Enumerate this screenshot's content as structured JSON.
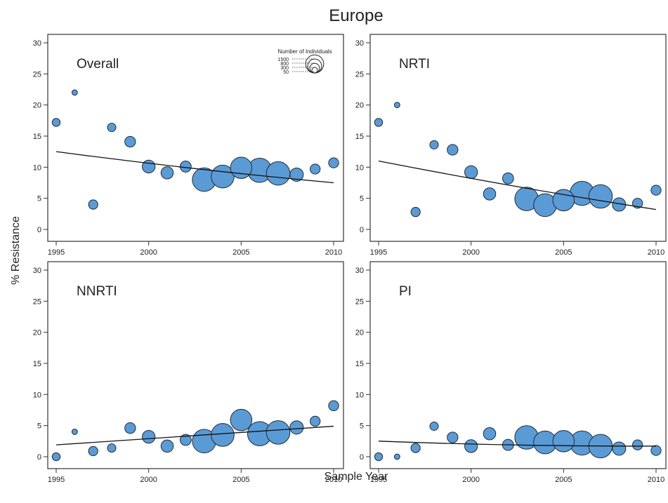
{
  "figure": {
    "title": "Europe",
    "xlabel": "Sample Year",
    "ylabel": "% Resistance"
  },
  "legend": {
    "title": "Number of Individuals",
    "entries": [
      {
        "label": "1500",
        "value": 1500
      },
      {
        "label": "800",
        "value": 800
      },
      {
        "label": "300",
        "value": 300
      },
      {
        "label": "50",
        "value": 50
      }
    ]
  },
  "colors": {
    "bubble_fill": "#5b9bd5",
    "bubble_stroke": "#1f2a36",
    "trend_line": "#111111",
    "axis": "#333333"
  },
  "chart_data": [
    {
      "type": "scatter",
      "title": "Overall",
      "xlim": [
        1995,
        2010
      ],
      "ylim": [
        0,
        30
      ],
      "xticks": [
        1995,
        2000,
        2005,
        2010
      ],
      "yticks": [
        0,
        5,
        10,
        15,
        20,
        25,
        30
      ],
      "x": [
        1995,
        1996,
        1997,
        1998,
        1999,
        2000,
        2001,
        2002,
        2003,
        2004,
        2005,
        2006,
        2007,
        2008,
        2009,
        2010
      ],
      "y": [
        17.2,
        22.0,
        4.0,
        16.4,
        14.1,
        10.1,
        9.1,
        10.1,
        8.0,
        8.5,
        9.9,
        9.5,
        9.0,
        8.8,
        9.7,
        10.7
      ],
      "n": [
        60,
        20,
        90,
        70,
        130,
        200,
        180,
        140,
        800,
        750,
        650,
        850,
        800,
        220,
        110,
        110
      ],
      "trend": {
        "x": [
          1995,
          2010
        ],
        "y": [
          12.5,
          7.5
        ]
      }
    },
    {
      "type": "scatter",
      "title": "NRTI",
      "xlim": [
        1995,
        2010
      ],
      "ylim": [
        0,
        30
      ],
      "xticks": [
        1995,
        2000,
        2005,
        2010
      ],
      "yticks": [
        0,
        5,
        10,
        15,
        20,
        25,
        30
      ],
      "x": [
        1995,
        1996,
        1997,
        1998,
        1999,
        2000,
        2001,
        2002,
        2003,
        2004,
        2005,
        2006,
        2007,
        2008,
        2009,
        2010
      ],
      "y": [
        17.2,
        20.0,
        2.8,
        13.6,
        12.8,
        9.2,
        5.7,
        8.2,
        4.9,
        3.9,
        4.7,
        5.8,
        5.3,
        4.0,
        4.2,
        6.3
      ],
      "n": [
        60,
        20,
        90,
        70,
        130,
        200,
        180,
        140,
        800,
        750,
        650,
        850,
        800,
        220,
        110,
        110
      ],
      "trend": {
        "x": [
          1995,
          2010
        ],
        "y": [
          11.0,
          3.2
        ]
      }
    },
    {
      "type": "scatter",
      "title": "NNRTI",
      "xlim": [
        1995,
        2010
      ],
      "ylim": [
        0,
        30
      ],
      "xticks": [
        1995,
        2000,
        2005,
        2010
      ],
      "yticks": [
        0,
        5,
        10,
        15,
        20,
        25,
        30
      ],
      "x": [
        1995,
        1996,
        1997,
        1998,
        1999,
        2000,
        2001,
        2002,
        2003,
        2004,
        2005,
        2006,
        2007,
        2008,
        2009,
        2010
      ],
      "y": [
        0.0,
        4.0,
        0.9,
        1.4,
        4.6,
        3.2,
        1.7,
        2.7,
        2.5,
        3.5,
        5.9,
        3.7,
        3.9,
        4.7,
        5.7,
        8.2
      ],
      "n": [
        60,
        20,
        90,
        70,
        130,
        200,
        180,
        140,
        800,
        750,
        650,
        850,
        800,
        220,
        110,
        110
      ],
      "trend": {
        "x": [
          1995,
          2010
        ],
        "y": [
          1.9,
          4.9
        ]
      }
    },
    {
      "type": "scatter",
      "title": "PI",
      "xlim": [
        1995,
        2010
      ],
      "ylim": [
        0,
        30
      ],
      "xticks": [
        1995,
        2000,
        2005,
        2010
      ],
      "yticks": [
        0,
        5,
        10,
        15,
        20,
        25,
        30
      ],
      "x": [
        1995,
        1996,
        1997,
        1998,
        1999,
        2000,
        2001,
        2002,
        2003,
        2004,
        2005,
        2006,
        2007,
        2008,
        2009,
        2010
      ],
      "y": [
        0.0,
        0.0,
        1.4,
        4.9,
        3.1,
        1.7,
        3.7,
        1.9,
        3.1,
        2.3,
        2.5,
        2.2,
        1.7,
        1.3,
        1.9,
        1.0
      ],
      "n": [
        60,
        20,
        90,
        70,
        130,
        200,
        180,
        140,
        800,
        750,
        650,
        850,
        800,
        220,
        110,
        110
      ],
      "trend": {
        "x": [
          1995,
          2010
        ],
        "y": [
          2.5,
          1.7
        ]
      }
    }
  ]
}
